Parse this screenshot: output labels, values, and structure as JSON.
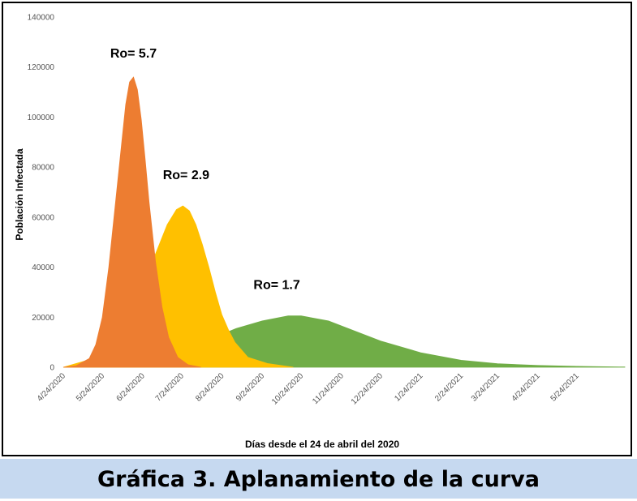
{
  "chart_data": {
    "type": "area",
    "title": "",
    "xlabel": "Días desde el 24 de abril del 2020",
    "ylabel": "Población Infectada",
    "ylim": [
      0,
      140000
    ],
    "yticks": [
      0,
      20000,
      40000,
      60000,
      80000,
      100000,
      120000,
      140000
    ],
    "ytick_labels": [
      "0",
      "20000",
      "40000",
      "60000",
      "80000",
      "100000",
      "120000",
      "140000"
    ],
    "xlim": [
      "2020-04-24",
      "2021-06-30"
    ],
    "xticks": [
      "2020-04-24",
      "2020-05-24",
      "2020-06-24",
      "2020-07-24",
      "2020-08-24",
      "2020-09-24",
      "2020-10-24",
      "2020-11-24",
      "2020-12-24",
      "2021-01-24",
      "2021-02-24",
      "2021-03-24",
      "2021-04-24",
      "2021-05-24"
    ],
    "xtick_labels": [
      "4/24/2020",
      "5/24/2020",
      "6/24/2020",
      "7/24/2020",
      "8/24/2020",
      "9/24/2020",
      "10/24/2020",
      "11/24/2020",
      "12/24/2020",
      "1/24/2021",
      "2/24/2021",
      "3/24/2021",
      "4/24/2021",
      "5/24/2021"
    ],
    "grid": false,
    "legend": "none",
    "series": [
      {
        "annotation": "Ro= 5.7",
        "color": "#ed7d31",
        "x": [
          "2020-04-24",
          "2020-05-04",
          "2020-05-14",
          "2020-05-19",
          "2020-05-24",
          "2020-05-29",
          "2020-06-03",
          "2020-06-08",
          "2020-06-11",
          "2020-06-14",
          "2020-06-17",
          "2020-06-20",
          "2020-06-23",
          "2020-06-26",
          "2020-06-29",
          "2020-07-04",
          "2020-07-09",
          "2020-07-14",
          "2020-07-21",
          "2020-07-29",
          "2020-08-08"
        ],
        "values": [
          0,
          600,
          3500,
          9000,
          20000,
          40000,
          65000,
          90000,
          105000,
          114000,
          116000,
          111000,
          99000,
          83000,
          66000,
          42000,
          24000,
          12000,
          4000,
          1000,
          0
        ]
      },
      {
        "annotation": "Ro= 2.9",
        "color": "#ffc000",
        "x": [
          "2020-04-24",
          "2020-05-14",
          "2020-05-24",
          "2020-06-03",
          "2020-06-13",
          "2020-06-23",
          "2020-07-03",
          "2020-07-13",
          "2020-07-20",
          "2020-07-25",
          "2020-07-30",
          "2020-08-04",
          "2020-08-09",
          "2020-08-14",
          "2020-08-19",
          "2020-08-24",
          "2020-08-29",
          "2020-09-03",
          "2020-09-13",
          "2020-09-28",
          "2020-10-18"
        ],
        "values": [
          0,
          3000,
          6000,
          11000,
          19000,
          30000,
          44000,
          57000,
          63000,
          64500,
          62500,
          57000,
          49000,
          40000,
          30000,
          21000,
          15000,
          10000,
          4000,
          1500,
          0
        ]
      },
      {
        "annotation": "Ro= 1.7",
        "color": "#70ad47",
        "x": [
          "2020-04-24",
          "2020-05-24",
          "2020-06-24",
          "2020-07-24",
          "2020-08-14",
          "2020-09-04",
          "2020-09-24",
          "2020-10-14",
          "2020-10-24",
          "2020-11-14",
          "2020-12-04",
          "2020-12-24",
          "2021-01-24",
          "2021-02-24",
          "2021-03-24",
          "2021-04-24",
          "2021-05-24",
          "2021-06-30"
        ],
        "values": [
          0,
          1500,
          3500,
          7000,
          11000,
          15500,
          18500,
          20500,
          20500,
          18500,
          14500,
          10500,
          5800,
          2800,
          1400,
          700,
          350,
          100
        ]
      }
    ]
  },
  "caption": "Gráfica 3. Aplanamiento de la curva"
}
